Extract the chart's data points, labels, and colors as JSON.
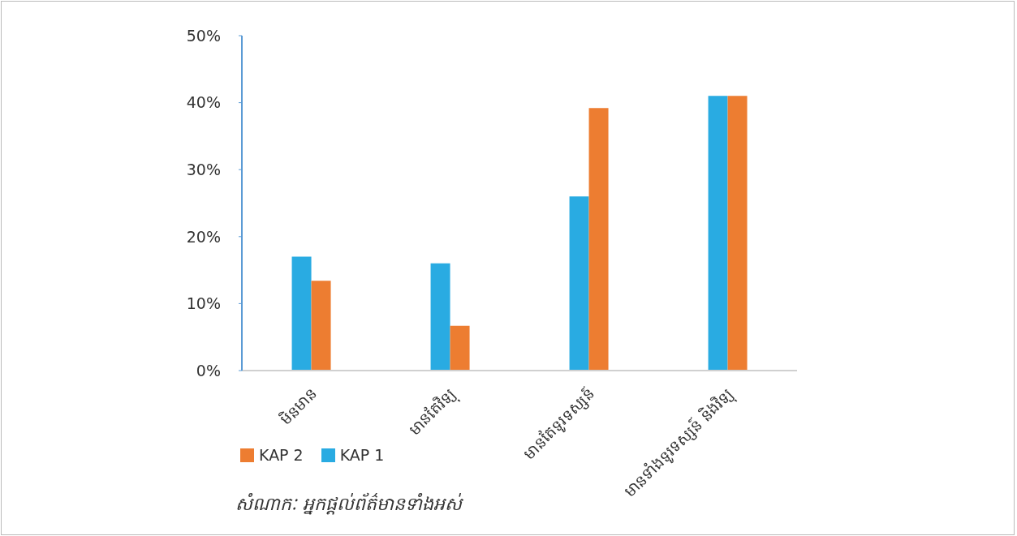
{
  "chart_data": {
    "type": "bar",
    "categories": [
      "មិនមាន",
      "មានតែវិទ្យុ",
      "មានតែទូរទស្សន៍",
      "មានទាំងទូរទស្សន៍ និងវិទ្យុ"
    ],
    "series": [
      {
        "name": "KAP 1",
        "color": "#29abe2",
        "values": [
          17,
          16,
          26,
          41
        ]
      },
      {
        "name": "KAP 2",
        "color": "#ed7d31",
        "values": [
          13.4,
          6.7,
          39.2,
          41
        ]
      }
    ],
    "ylim": [
      0,
      50
    ],
    "yticks": [
      {
        "value": 0,
        "label": "0%"
      },
      {
        "value": 10,
        "label": "10%"
      },
      {
        "value": 20,
        "label": "20%"
      },
      {
        "value": 30,
        "label": "30%"
      },
      {
        "value": 40,
        "label": "40%"
      },
      {
        "value": 50,
        "label": "50%"
      }
    ],
    "grid": false,
    "legend": "bottom left",
    "annotations": [
      "សំណាកៈ អ្នកផ្តល់ព័ត៌មានទាំងអស់"
    ]
  }
}
